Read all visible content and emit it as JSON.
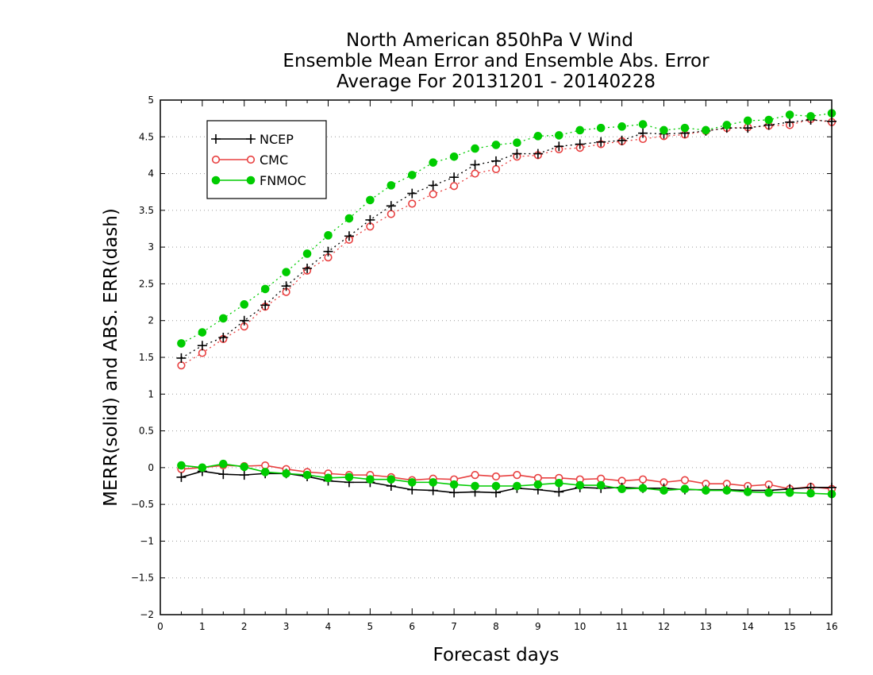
{
  "chart_data": {
    "type": "line",
    "title": [
      "North American 850hPa V Wind",
      "Ensemble Mean Error and Ensemble Abs. Error",
      "Average For 20131201 - 20140228"
    ],
    "xlabel": "Forecast days",
    "ylabel": "MERR(solid) and ABS. ERR(dash)",
    "xlim": [
      0,
      16
    ],
    "ylim": [
      -2,
      5
    ],
    "xticks": [
      "0",
      "1",
      "2",
      "3",
      "4",
      "5",
      "6",
      "7",
      "8",
      "9",
      "10",
      "11",
      "12",
      "13",
      "14",
      "15",
      "16"
    ],
    "yticks": [
      "−2",
      "−1.5",
      "−1",
      "−0.5",
      "0",
      "0.5",
      "1",
      "1.5",
      "2",
      "2.5",
      "3",
      "3.5",
      "4",
      "4.5",
      "5"
    ],
    "ytick_values": [
      -2,
      -1.5,
      -1,
      -0.5,
      0,
      0.5,
      1,
      1.5,
      2,
      2.5,
      3,
      3.5,
      4,
      4.5,
      5
    ],
    "grid": "horizontal dotted",
    "legend_position": "top-left",
    "x": [
      0.5,
      1,
      1.5,
      2,
      2.5,
      3,
      3.5,
      4,
      4.5,
      5,
      5.5,
      6,
      6.5,
      7,
      7.5,
      8,
      8.5,
      9,
      9.5,
      10,
      10.5,
      11,
      11.5,
      12,
      12.5,
      13,
      13.5,
      14,
      14.5,
      15,
      15.5,
      16
    ],
    "series": [
      {
        "name": "NCEP",
        "color": "#000000",
        "marker": "plus",
        "abs_err": [
          1.49,
          1.66,
          1.77,
          2.0,
          2.21,
          2.47,
          2.71,
          2.94,
          3.15,
          3.37,
          3.56,
          3.73,
          3.84,
          3.95,
          4.12,
          4.17,
          4.27,
          4.27,
          4.37,
          4.4,
          4.43,
          4.45,
          4.55,
          4.54,
          4.55,
          4.58,
          4.62,
          4.62,
          4.66,
          4.7,
          4.73,
          4.71
        ],
        "mean_err": [
          -0.13,
          -0.05,
          -0.09,
          -0.1,
          -0.08,
          -0.08,
          -0.12,
          -0.18,
          -0.2,
          -0.2,
          -0.25,
          -0.3,
          -0.31,
          -0.34,
          -0.33,
          -0.34,
          -0.28,
          -0.3,
          -0.33,
          -0.27,
          -0.28,
          -0.27,
          -0.28,
          -0.28,
          -0.3,
          -0.3,
          -0.3,
          -0.31,
          -0.31,
          -0.29,
          -0.27,
          -0.27
        ]
      },
      {
        "name": "CMC",
        "color": "#e84040",
        "marker": "open-circle",
        "abs_err": [
          1.39,
          1.56,
          1.75,
          1.92,
          2.19,
          2.39,
          2.68,
          2.86,
          3.1,
          3.28,
          3.45,
          3.59,
          3.72,
          3.83,
          4.0,
          4.06,
          4.23,
          4.25,
          4.33,
          4.35,
          4.4,
          4.44,
          4.47,
          4.51,
          4.53,
          4.58,
          4.62,
          4.63,
          4.65,
          4.66,
          4.74,
          4.7
        ],
        "mean_err": [
          -0.02,
          0.0,
          0.03,
          0.02,
          0.03,
          -0.02,
          -0.06,
          -0.08,
          -0.1,
          -0.1,
          -0.13,
          -0.17,
          -0.15,
          -0.16,
          -0.1,
          -0.12,
          -0.1,
          -0.14,
          -0.14,
          -0.16,
          -0.15,
          -0.18,
          -0.16,
          -0.2,
          -0.17,
          -0.22,
          -0.22,
          -0.25,
          -0.23,
          -0.29,
          -0.26,
          -0.29
        ]
      },
      {
        "name": "FNMOC",
        "color": "#00cc00",
        "marker": "filled-circle",
        "abs_err": [
          1.69,
          1.84,
          2.03,
          2.22,
          2.43,
          2.66,
          2.91,
          3.16,
          3.39,
          3.64,
          3.84,
          3.98,
          4.15,
          4.23,
          4.34,
          4.39,
          4.42,
          4.51,
          4.52,
          4.59,
          4.62,
          4.64,
          4.67,
          4.59,
          4.62,
          4.59,
          4.66,
          4.72,
          4.73,
          4.8,
          4.78,
          4.82
        ],
        "mean_err": [
          0.03,
          0.0,
          0.05,
          0.01,
          -0.06,
          -0.08,
          -0.1,
          -0.14,
          -0.13,
          -0.16,
          -0.16,
          -0.2,
          -0.2,
          -0.23,
          -0.25,
          -0.25,
          -0.25,
          -0.23,
          -0.21,
          -0.24,
          -0.24,
          -0.29,
          -0.28,
          -0.31,
          -0.29,
          -0.31,
          -0.31,
          -0.33,
          -0.34,
          -0.34,
          -0.35,
          -0.36
        ]
      }
    ]
  }
}
